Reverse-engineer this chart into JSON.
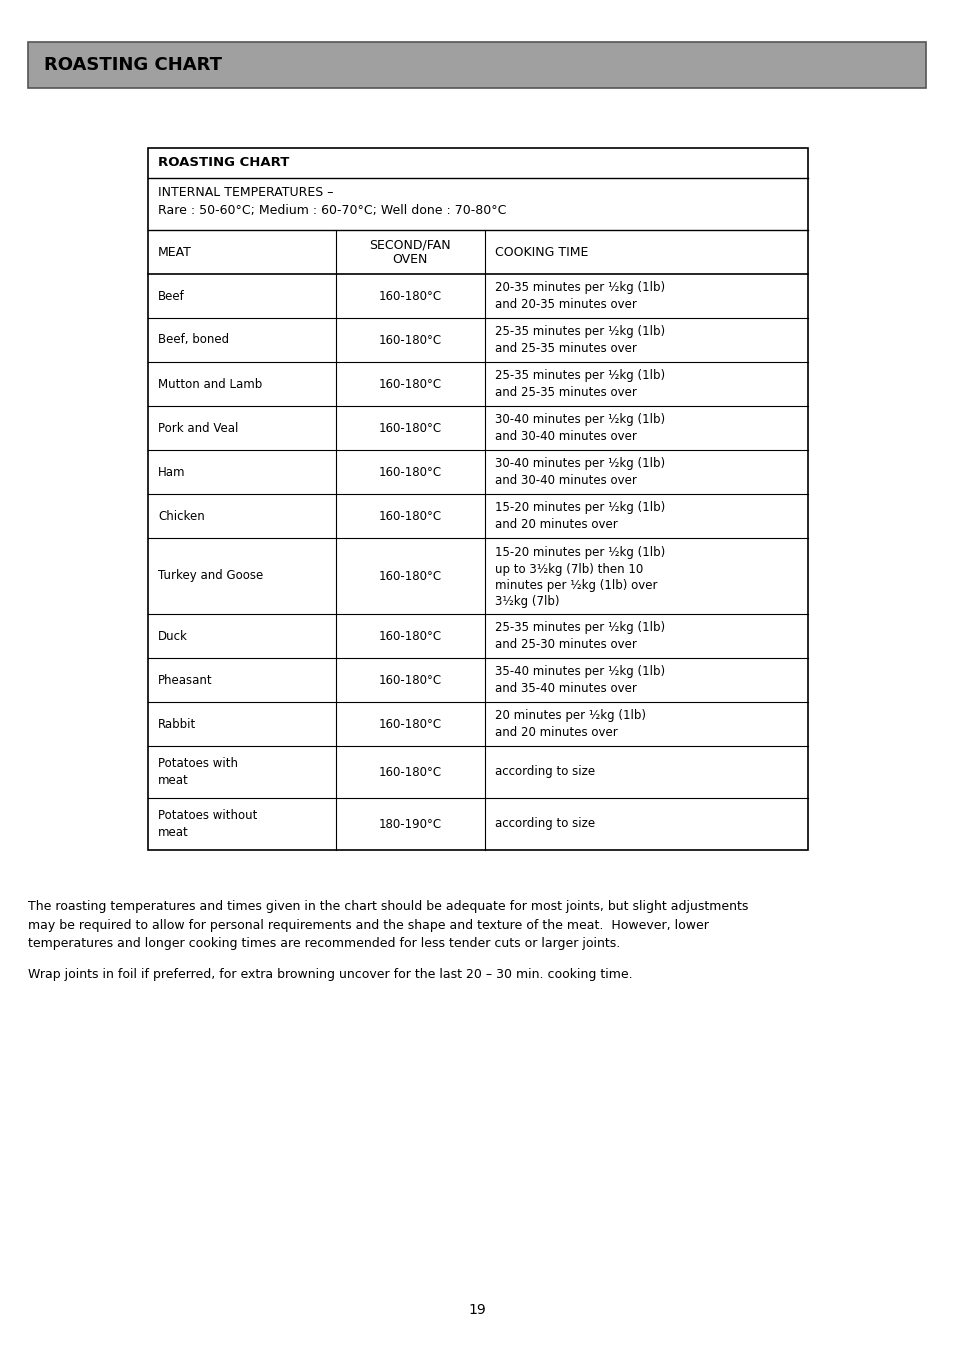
{
  "page_title": "ROASTING CHART",
  "page_title_bg": "#999999",
  "table_title": "ROASTING CHART",
  "internal_temps": "INTERNAL TEMPERATURES –\nRare : 50-60°C; Medium : 60-70°C; Well done : 70-80°C",
  "col_headers": [
    "MEAT",
    "SECOND/FAN\nOVEN",
    "COOKING TIME"
  ],
  "rows": [
    [
      "Beef",
      "160-180°C",
      "20-35 minutes per ½kg (1lb)\nand 20-35 minutes over"
    ],
    [
      "Beef, boned",
      "160-180°C",
      "25-35 minutes per ½kg (1lb)\nand 25-35 minutes over"
    ],
    [
      "Mutton and Lamb",
      "160-180°C",
      "25-35 minutes per ½kg (1lb)\nand 25-35 minutes over"
    ],
    [
      "Pork and Veal",
      "160-180°C",
      "30-40 minutes per ½kg (1lb)\nand 30-40 minutes over"
    ],
    [
      "Ham",
      "160-180°C",
      "30-40 minutes per ½kg (1lb)\nand 30-40 minutes over"
    ],
    [
      "Chicken",
      "160-180°C",
      "15-20 minutes per ½kg (1lb)\nand 20 minutes over"
    ],
    [
      "Turkey and Goose",
      "160-180°C",
      "15-20 minutes per ½kg (1lb)\nup to 3½kg (7lb) then 10\nminutes per ½kg (1lb) over\n3½kg (7lb)"
    ],
    [
      "Duck",
      "160-180°C",
      "25-35 minutes per ½kg (1lb)\nand 25-30 minutes over"
    ],
    [
      "Pheasant",
      "160-180°C",
      "35-40 minutes per ½kg (1lb)\nand 35-40 minutes over"
    ],
    [
      "Rabbit",
      "160-180°C",
      "20 minutes per ½kg (1lb)\nand 20 minutes over"
    ],
    [
      "Potatoes with\nmeat",
      "160-180°C",
      "according to size"
    ],
    [
      "Potatoes without\nmeat",
      "180-190°C",
      "according to size"
    ]
  ],
  "footer_text1": "The roasting temperatures and times given in the chart should be adequate for most joints, but slight adjustments\nmay be required to allow for personal requirements and the shape and texture of the meat.  However, lower\ntemperatures and longer cooking times are recommended for less tender cuts or larger joints.",
  "footer_text2": "Wrap joints in foil if preferred, for extra browning uncover for the last 20 – 30 min. cooking time.",
  "page_number": "19",
  "bg_color": "#ffffff",
  "text_color": "#000000",
  "header_bg": "#a0a0a0",
  "table_border_color": "#000000",
  "fig_width": 9.54,
  "fig_height": 13.51,
  "dpi": 100
}
